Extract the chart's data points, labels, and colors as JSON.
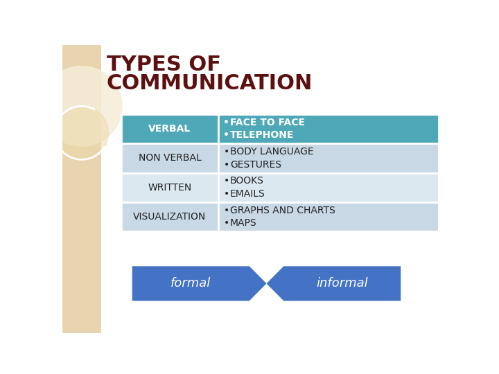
{
  "title_line1": "TYPES OF",
  "title_line2": "COMMUNICATION",
  "title_color": "#5C1010",
  "bg_color": "#FFFFFF",
  "side_bg_color": "#E8D5B0",
  "table_header_bg": "#4FA8B8",
  "table_header_text": "#FFFFFF",
  "table_row_bgs": [
    "#C8D8E4",
    "#DCE8F0",
    "#C8D8E4"
  ],
  "table_text_color": "#222222",
  "rows": [
    {
      "left": "VERBAL",
      "right": [
        "FACE TO FACE",
        "TELEPHONE"
      ],
      "header": true
    },
    {
      "left": "NON VERBAL",
      "right": [
        "BODY LANGUAGE",
        "GESTURES"
      ],
      "header": false
    },
    {
      "left": "WRITTEN",
      "right": [
        "BOOKS",
        "EMAILS"
      ],
      "header": false
    },
    {
      "left": "VISUALIZATION",
      "right": [
        "GRAPHS AND CHARTS",
        "MAPS"
      ],
      "header": false
    }
  ],
  "arrow_color": "#4472C4",
  "arrow_label_left": "formal",
  "arrow_label_right": "informal",
  "arrow_label_color": "#FFFFFF"
}
